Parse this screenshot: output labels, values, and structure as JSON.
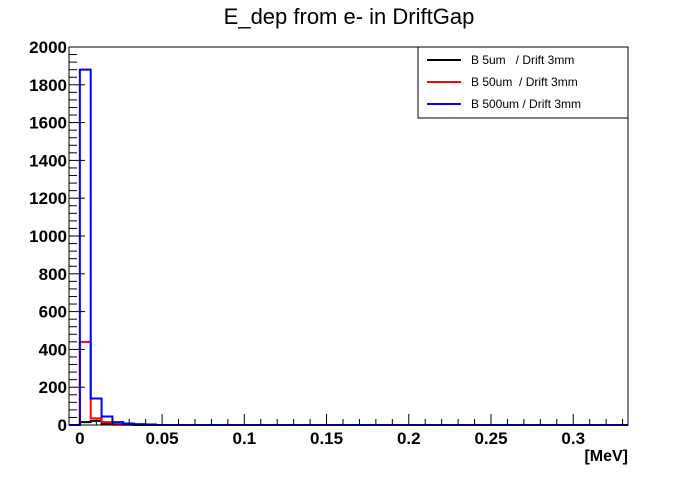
{
  "chart_data": {
    "type": "histogram",
    "title": "E_dep from e- in DriftGap",
    "xlabel": "[MeV]",
    "ylabel": "",
    "xlim": [
      -0.0066,
      0.3333
    ],
    "ylim": [
      0,
      2000
    ],
    "bin_width": 0.0066,
    "x_ticks": [
      0,
      0.05,
      0.1,
      0.15,
      0.2,
      0.25,
      0.3
    ],
    "x_tick_labels": [
      "0",
      "0.05",
      "0.1",
      "0.15",
      "0.2",
      "0.25",
      "0.3"
    ],
    "y_ticks": [
      0,
      200,
      400,
      600,
      800,
      1000,
      1200,
      1400,
      1600,
      1800,
      2000
    ],
    "y_tick_labels": [
      "0",
      "200",
      "400",
      "600",
      "800",
      "1000",
      "1200",
      "1400",
      "1600",
      "1800",
      "2000"
    ],
    "grid": false,
    "legend_position": "top-right",
    "series": [
      {
        "name": "B 5um   / Drift 3mm",
        "color": "#000000",
        "values": [
          0,
          15,
          22,
          5,
          2,
          1,
          0,
          0
        ]
      },
      {
        "name": "B 50um  / Drift 3mm",
        "color": "#ff0000",
        "values": [
          0,
          440,
          35,
          15,
          8,
          5,
          4,
          3
        ]
      },
      {
        "name": "B 500um / Drift 3mm",
        "color": "#0000ff",
        "values": [
          0,
          1880,
          140,
          45,
          15,
          8,
          4,
          2
        ]
      }
    ]
  }
}
